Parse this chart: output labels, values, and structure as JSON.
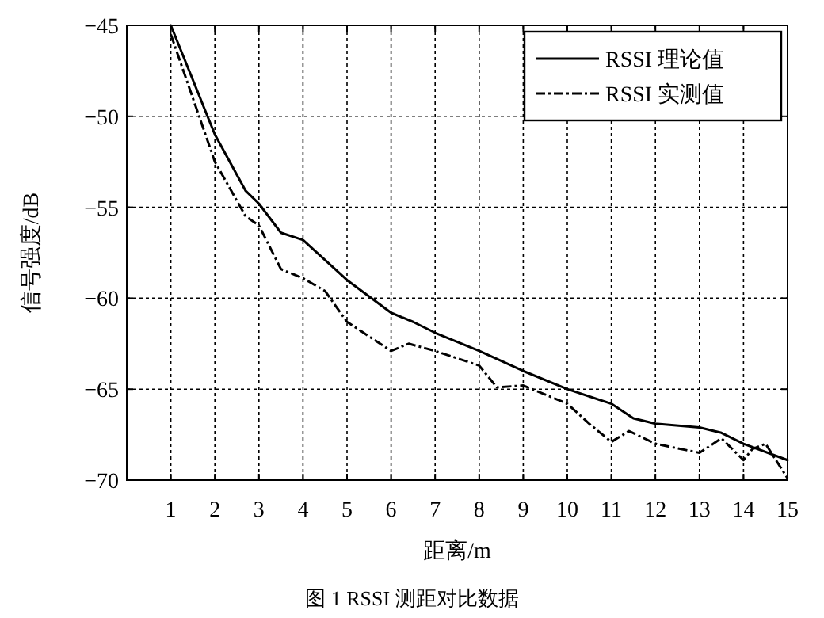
{
  "chart_data": {
    "type": "line",
    "xlabel": "距离/m",
    "ylabel": "信号强度/dB",
    "annotations": [
      "图 1  RSSI 测距对比数据"
    ],
    "series": [
      {
        "name": "RSSI 理论值",
        "color": "#000000",
        "line_style": "solid",
        "x": [
          1,
          2,
          2.7,
          3,
          3.5,
          4,
          5,
          6,
          6.5,
          7,
          8,
          9,
          10,
          11,
          11.5,
          12,
          13,
          13.5,
          14,
          15
        ],
        "values": [
          -45,
          -51.0,
          -54.1,
          -54.8,
          -56.4,
          -56.8,
          -59.0,
          -60.8,
          -61.3,
          -61.9,
          -62.9,
          -64.0,
          -65.0,
          -65.8,
          -66.6,
          -66.9,
          -67.1,
          -67.4,
          -68.0,
          -68.9
        ]
      },
      {
        "name": "RSSI 实测值",
        "color": "#000000",
        "line_style": "dashdot",
        "x": [
          1,
          2,
          2.7,
          3,
          3.5,
          4,
          4.5,
          5,
          6,
          6.4,
          7,
          8,
          8.4,
          9,
          10,
          10.5,
          11,
          11.4,
          12,
          13,
          13.5,
          14,
          14.2,
          14.5,
          15
        ],
        "values": [
          -45.5,
          -52.5,
          -55.5,
          -56.0,
          -58.4,
          -58.9,
          -59.6,
          -61.3,
          -62.9,
          -62.5,
          -62.9,
          -63.7,
          -64.9,
          -64.8,
          -65.8,
          -66.9,
          -67.9,
          -67.3,
          -68.0,
          -68.5,
          -67.7,
          -68.9,
          -68.3,
          -68.0,
          -69.9
        ]
      }
    ],
    "xlim": [
      0,
      15
    ],
    "ylim": [
      -70,
      -45
    ],
    "xticks": [
      1,
      2,
      3,
      4,
      5,
      6,
      7,
      8,
      9,
      10,
      11,
      12,
      13,
      14,
      15
    ],
    "yticks": [
      -70,
      -65,
      -60,
      -55,
      -50,
      -45
    ],
    "grid": true,
    "legend": "top right"
  }
}
